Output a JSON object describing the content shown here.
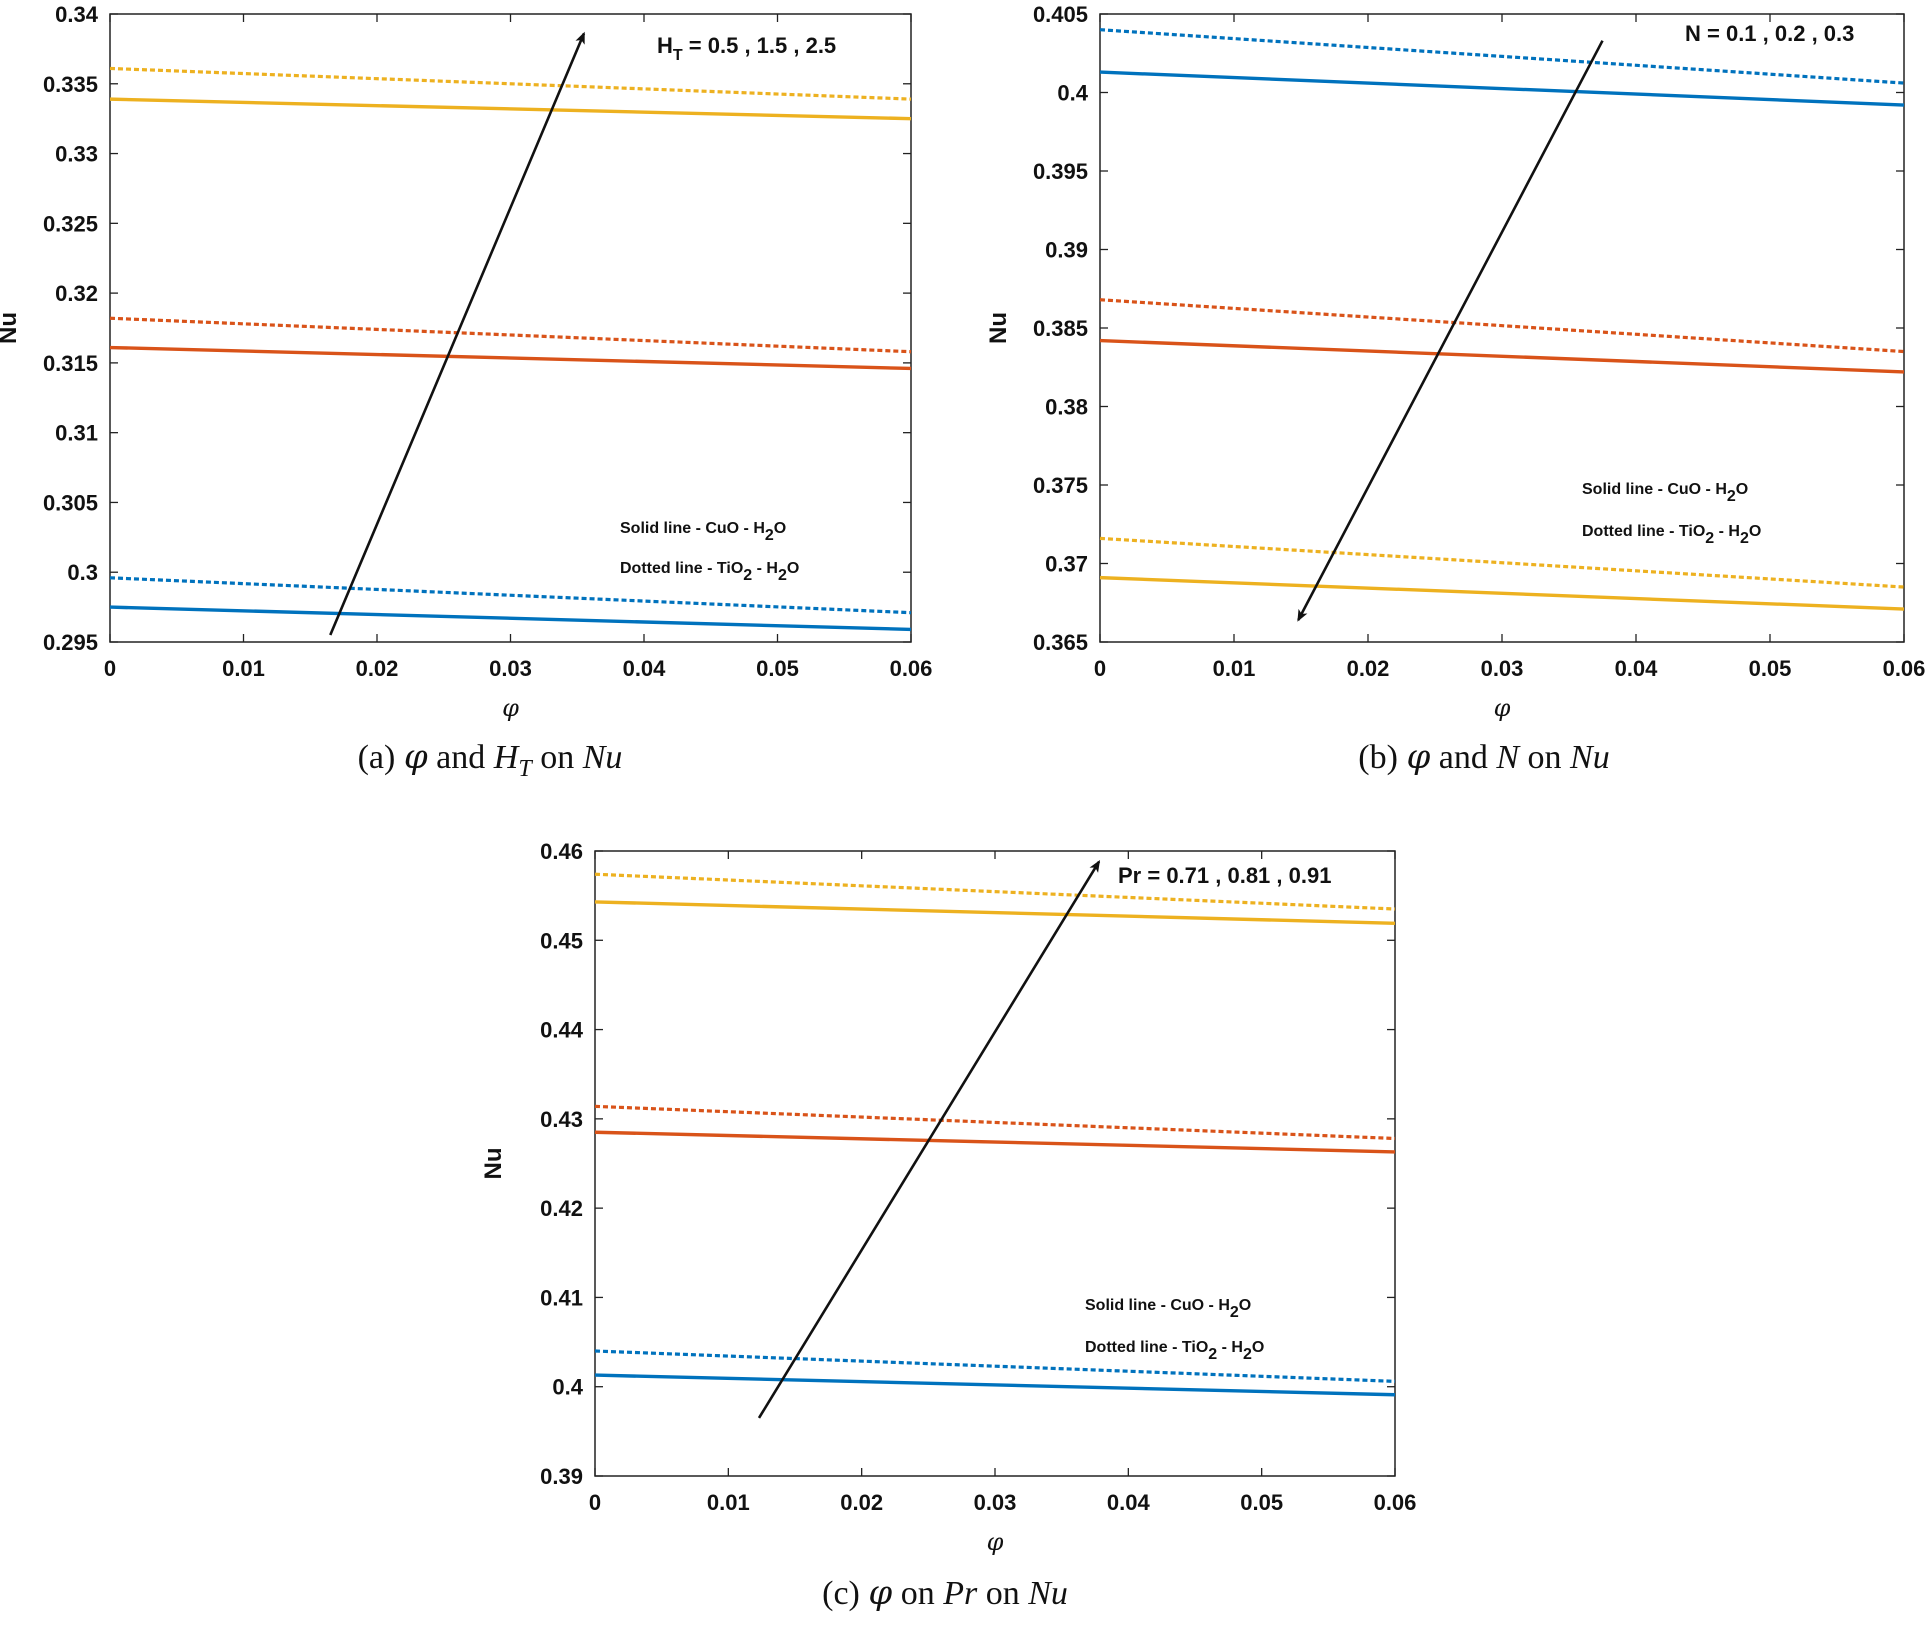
{
  "colors": {
    "blue": "#0072BD",
    "orange": "#D95319",
    "yellow": "#EDB120",
    "arrow": "#111111"
  },
  "legend": {
    "solid_prefix": "Solid line - CuO - H",
    "dotted_prefix": "Dotted line - TiO",
    "sub2": "2",
    "sep_h": " - H",
    "o": "O"
  },
  "chart_data": [
    {
      "id": "a",
      "type": "line",
      "title": "",
      "xlabel": "φ",
      "ylabel": "Nu",
      "xlim": [
        0,
        0.06
      ],
      "ylim": [
        0.295,
        0.34
      ],
      "xticks": [
        0,
        0.01,
        0.02,
        0.03,
        0.04,
        0.05,
        0.06
      ],
      "xtick_labels": [
        "0",
        "0.01",
        "0.02",
        "0.03",
        "0.04",
        "0.05",
        "0.06"
      ],
      "yticks": [
        0.295,
        0.3,
        0.305,
        0.31,
        0.315,
        0.32,
        0.325,
        0.33,
        0.335,
        0.34
      ],
      "ytick_labels": [
        "0.295",
        "0.3",
        "0.305",
        "0.31",
        "0.315",
        "0.32",
        "0.325",
        "0.33",
        "0.335",
        "0.34"
      ],
      "param_label_main": "H",
      "param_label_sub": "T",
      "param_values": " = 0.5 , 1.5 , 2.5",
      "arrow": {
        "from": [
          0.0165,
          0.2955
        ],
        "to": [
          0.0355,
          0.3386
        ]
      },
      "caption": {
        "prefix": "(a) ",
        "sym": "φ",
        "mid": " and ",
        "var": "H",
        "var_sub": "T",
        "on": " on ",
        "res": "Nu"
      },
      "series": [
        {
          "name": "CuO-H2O H_T=0.5",
          "style": "solid",
          "color": "blue",
          "x": [
            0,
            0.06
          ],
          "y": [
            0.2975,
            0.2959
          ]
        },
        {
          "name": "TiO2-H2O H_T=0.5",
          "style": "dotted",
          "color": "blue",
          "x": [
            0,
            0.06
          ],
          "y": [
            0.2996,
            0.2971
          ]
        },
        {
          "name": "CuO-H2O H_T=1.5",
          "style": "solid",
          "color": "orange",
          "x": [
            0,
            0.06
          ],
          "y": [
            0.3161,
            0.3146
          ]
        },
        {
          "name": "TiO2-H2O H_T=1.5",
          "style": "dotted",
          "color": "orange",
          "x": [
            0,
            0.06
          ],
          "y": [
            0.3182,
            0.3158
          ]
        },
        {
          "name": "CuO-H2O H_T=2.5",
          "style": "solid",
          "color": "yellow",
          "x": [
            0,
            0.06
          ],
          "y": [
            0.3339,
            0.3325
          ]
        },
        {
          "name": "TiO2-H2O H_T=2.5",
          "style": "dotted",
          "color": "yellow",
          "x": [
            0,
            0.06
          ],
          "y": [
            0.3361,
            0.3339
          ]
        }
      ]
    },
    {
      "id": "b",
      "type": "line",
      "title": "",
      "xlabel": "φ",
      "ylabel": "Nu",
      "xlim": [
        0,
        0.06
      ],
      "ylim": [
        0.365,
        0.405
      ],
      "xticks": [
        0,
        0.01,
        0.02,
        0.03,
        0.04,
        0.05,
        0.06
      ],
      "xtick_labels": [
        "0",
        "0.01",
        "0.02",
        "0.03",
        "0.04",
        "0.05",
        "0.06"
      ],
      "yticks": [
        0.365,
        0.37,
        0.375,
        0.38,
        0.385,
        0.39,
        0.395,
        0.4,
        0.405
      ],
      "ytick_labels": [
        "0.365",
        "0.37",
        "0.375",
        "0.38",
        "0.385",
        "0.39",
        "0.395",
        "0.4",
        "0.405"
      ],
      "param_label_main": "N",
      "param_label_sub": "",
      "param_values": " = 0.1 , 0.2 , 0.3",
      "arrow": {
        "from": [
          0.0375,
          0.4033
        ],
        "to": [
          0.0148,
          0.3664
        ]
      },
      "caption": {
        "prefix": "(b) ",
        "sym": "φ",
        "mid": " and ",
        "var": "N",
        "var_sub": "",
        "on": " on ",
        "res": "Nu"
      },
      "series": [
        {
          "name": "CuO-H2O N=0.1",
          "style": "solid",
          "color": "blue",
          "x": [
            0,
            0.06
          ],
          "y": [
            0.4013,
            0.3992
          ]
        },
        {
          "name": "TiO2-H2O N=0.1",
          "style": "dotted",
          "color": "blue",
          "x": [
            0,
            0.06
          ],
          "y": [
            0.404,
            0.4006
          ]
        },
        {
          "name": "CuO-H2O N=0.2",
          "style": "solid",
          "color": "orange",
          "x": [
            0,
            0.06
          ],
          "y": [
            0.3842,
            0.3822
          ]
        },
        {
          "name": "TiO2-H2O N=0.2",
          "style": "dotted",
          "color": "orange",
          "x": [
            0,
            0.06
          ],
          "y": [
            0.3868,
            0.3835
          ]
        },
        {
          "name": "CuO-H2O N=0.3",
          "style": "solid",
          "color": "yellow",
          "x": [
            0,
            0.06
          ],
          "y": [
            0.3691,
            0.3671
          ]
        },
        {
          "name": "TiO2-H2O N=0.3",
          "style": "dotted",
          "color": "yellow",
          "x": [
            0,
            0.06
          ],
          "y": [
            0.3716,
            0.3685
          ]
        }
      ]
    },
    {
      "id": "c",
      "type": "line",
      "title": "",
      "xlabel": "φ",
      "ylabel": "Nu",
      "xlim": [
        0,
        0.06
      ],
      "ylim": [
        0.39,
        0.46
      ],
      "xticks": [
        0,
        0.01,
        0.02,
        0.03,
        0.04,
        0.05,
        0.06
      ],
      "xtick_labels": [
        "0",
        "0.01",
        "0.02",
        "0.03",
        "0.04",
        "0.05",
        "0.06"
      ],
      "yticks": [
        0.39,
        0.4,
        0.41,
        0.42,
        0.43,
        0.44,
        0.45,
        0.46
      ],
      "ytick_labels": [
        "0.39",
        "0.4",
        "0.41",
        "0.42",
        "0.43",
        "0.44",
        "0.45",
        "0.46"
      ],
      "param_label_main": "Pr",
      "param_label_sub": "",
      "param_values": " = 0.71 , 0.81 , 0.91",
      "arrow": {
        "from": [
          0.0123,
          0.3965
        ],
        "to": [
          0.0378,
          0.4588
        ]
      },
      "caption": {
        "prefix": "(c) ",
        "sym": "φ",
        "mid": " on ",
        "var": "Pr",
        "var_sub": "",
        "on": " on ",
        "res": "Nu"
      },
      "series": [
        {
          "name": "CuO-H2O Pr=0.71",
          "style": "solid",
          "color": "blue",
          "x": [
            0,
            0.06
          ],
          "y": [
            0.4013,
            0.3991
          ]
        },
        {
          "name": "TiO2-H2O Pr=0.71",
          "style": "dotted",
          "color": "blue",
          "x": [
            0,
            0.06
          ],
          "y": [
            0.404,
            0.4006
          ]
        },
        {
          "name": "CuO-H2O Pr=0.81",
          "style": "solid",
          "color": "orange",
          "x": [
            0,
            0.06
          ],
          "y": [
            0.4285,
            0.4263
          ]
        },
        {
          "name": "TiO2-H2O Pr=0.81",
          "style": "dotted",
          "color": "orange",
          "x": [
            0,
            0.06
          ],
          "y": [
            0.4314,
            0.4278
          ]
        },
        {
          "name": "CuO-H2O Pr=0.91",
          "style": "solid",
          "color": "yellow",
          "x": [
            0,
            0.06
          ],
          "y": [
            0.4543,
            0.4519
          ]
        },
        {
          "name": "TiO2-H2O Pr=0.91",
          "style": "dotted",
          "color": "yellow",
          "x": [
            0,
            0.06
          ],
          "y": [
            0.4574,
            0.4535
          ]
        }
      ]
    }
  ]
}
